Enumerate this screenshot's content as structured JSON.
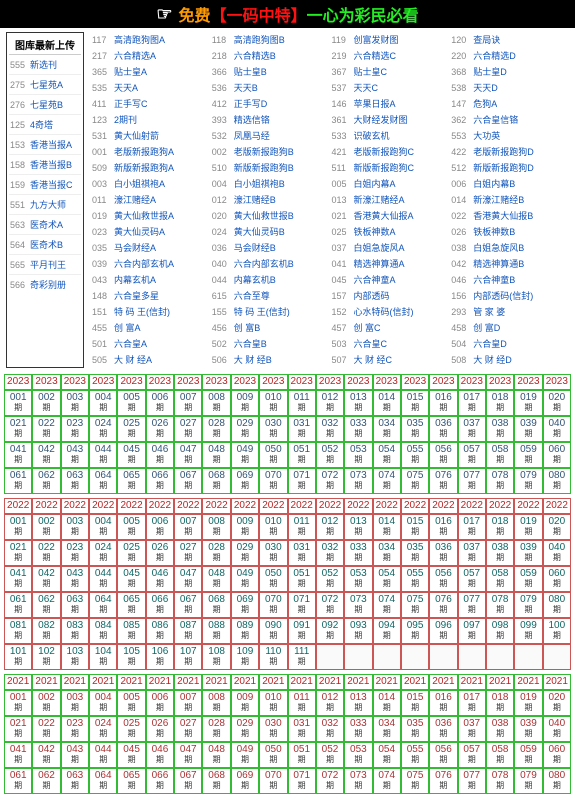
{
  "banner": {
    "hand": "☞",
    "p1": "免费",
    "p2": "【一码中特】",
    "p3": "一心为彩民必看"
  },
  "sidebar": {
    "title": "图库最新上传",
    "items": [
      {
        "n": "555",
        "t": "新选刊"
      },
      {
        "n": "275",
        "t": "七星苑A"
      },
      {
        "n": "276",
        "t": "七星苑B"
      },
      {
        "n": "125",
        "t": "4奇塔"
      },
      {
        "n": "153",
        "t": "香港当报A"
      },
      {
        "n": "158",
        "t": "香港当报B"
      },
      {
        "n": "159",
        "t": "香港当报C"
      },
      {
        "n": "551",
        "t": "九方大师"
      },
      {
        "n": "563",
        "t": "医奇术A"
      },
      {
        "n": "564",
        "t": "医奇术B"
      },
      {
        "n": "565",
        "t": "平月刊王"
      },
      {
        "n": "566",
        "t": "奇彩别册"
      }
    ]
  },
  "links": [
    [
      {
        "n": "117",
        "t": "高清跑狗图A"
      },
      {
        "n": "118",
        "t": "高清跑狗图B"
      },
      {
        "n": "119",
        "t": "创富发财图"
      },
      {
        "n": "120",
        "t": "查局诀"
      }
    ],
    [
      {
        "n": "217",
        "t": "六合精选A"
      },
      {
        "n": "218",
        "t": "六合精选B"
      },
      {
        "n": "219",
        "t": "六合精选C"
      },
      {
        "n": "220",
        "t": "六合精选D"
      }
    ],
    [
      {
        "n": "365",
        "t": "贴士皇A"
      },
      {
        "n": "366",
        "t": "贴士皇B"
      },
      {
        "n": "367",
        "t": "贴士皇C"
      },
      {
        "n": "368",
        "t": "贴士皇D"
      }
    ],
    [
      {
        "n": "535",
        "t": "天天A"
      },
      {
        "n": "536",
        "t": "天天B"
      },
      {
        "n": "537",
        "t": "天天C"
      },
      {
        "n": "538",
        "t": "天天D"
      }
    ],
    [
      {
        "n": "411",
        "t": "正手写C"
      },
      {
        "n": "412",
        "t": "正手写D"
      },
      {
        "n": "146",
        "t": "苹果日报A"
      },
      {
        "n": "147",
        "t": "危狗A"
      }
    ],
    [
      {
        "n": "123",
        "t": "2期刊"
      },
      {
        "n": "393",
        "t": "精选信铬"
      },
      {
        "n": "361",
        "t": "大财经发财图"
      },
      {
        "n": "362",
        "t": "六合皇信铬"
      }
    ],
    [
      {
        "n": "531",
        "t": "黄大仙射箭"
      },
      {
        "n": "532",
        "t": "凤凰马经"
      },
      {
        "n": "533",
        "t": "识破玄机"
      },
      {
        "n": "553",
        "t": "大功英"
      }
    ],
    [
      {
        "n": "001",
        "t": "老版新报跑狗A"
      },
      {
        "n": "002",
        "t": "老版新报跑狗B"
      },
      {
        "n": "421",
        "t": "老版新报跑狗C"
      },
      {
        "n": "422",
        "t": "老版新报跑狗D"
      }
    ],
    [
      {
        "n": "509",
        "t": "新版新报跑狗A"
      },
      {
        "n": "510",
        "t": "新版新报跑狗B"
      },
      {
        "n": "511",
        "t": "新版新报跑狗C"
      },
      {
        "n": "512",
        "t": "新版新报跑狗D"
      }
    ],
    [
      {
        "n": "003",
        "t": "白小姐祺袍A"
      },
      {
        "n": "004",
        "t": "白小姐祺袍B"
      },
      {
        "n": "005",
        "t": "白姐内幕A"
      },
      {
        "n": "006",
        "t": "白姐内幕B"
      }
    ],
    [
      {
        "n": "011",
        "t": "濠江赌经A"
      },
      {
        "n": "012",
        "t": "濠江赌经B"
      },
      {
        "n": "013",
        "t": "新濠江赌经A"
      },
      {
        "n": "014",
        "t": "新濠江赌经B"
      }
    ],
    [
      {
        "n": "019",
        "t": "黄大仙救世报A"
      },
      {
        "n": "020",
        "t": "黄大仙救世报B"
      },
      {
        "n": "021",
        "t": "香港黄大仙报A"
      },
      {
        "n": "022",
        "t": "香港黄大仙报B"
      }
    ],
    [
      {
        "n": "023",
        "t": "黄大仙灵码A"
      },
      {
        "n": "024",
        "t": "黄大仙灵码B"
      },
      {
        "n": "025",
        "t": "铁板神数A"
      },
      {
        "n": "026",
        "t": "铁板神数B"
      }
    ],
    [
      {
        "n": "035",
        "t": "马会财经A"
      },
      {
        "n": "036",
        "t": "马会财经B"
      },
      {
        "n": "037",
        "t": "白姐急旋风A"
      },
      {
        "n": "038",
        "t": "白姐急旋风B"
      }
    ],
    [
      {
        "n": "039",
        "t": "六合内部玄机A"
      },
      {
        "n": "040",
        "t": "六合内部玄机B"
      },
      {
        "n": "041",
        "t": "精选神算通A"
      },
      {
        "n": "042",
        "t": "精选神算通B"
      }
    ],
    [
      {
        "n": "043",
        "t": "内幕玄机A"
      },
      {
        "n": "044",
        "t": "内幕玄机B"
      },
      {
        "n": "045",
        "t": "六合神童A"
      },
      {
        "n": "046",
        "t": "六合神童B"
      }
    ],
    [
      {
        "n": "148",
        "t": "六合皇多星"
      },
      {
        "n": "615",
        "t": "六合至尊"
      },
      {
        "n": "157",
        "t": "内部透码"
      },
      {
        "n": "156",
        "t": "内部透码(信封)"
      }
    ],
    [
      {
        "n": "151",
        "t": "特 码 王(信封)"
      },
      {
        "n": "155",
        "t": "特 码 王(信封)"
      },
      {
        "n": "152",
        "t": "心水特码(信封)"
      },
      {
        "n": "293",
        "t": "管 家 婆"
      }
    ],
    [
      {
        "n": "455",
        "t": "创 富A"
      },
      {
        "n": "456",
        "t": "创 富B"
      },
      {
        "n": "457",
        "t": "创 富C"
      },
      {
        "n": "458",
        "t": "创 富D"
      }
    ],
    [
      {
        "n": "501",
        "t": "六合皇A"
      },
      {
        "n": "502",
        "t": "六合皇B"
      },
      {
        "n": "503",
        "t": "六合皇C"
      },
      {
        "n": "504",
        "t": "六合皇D"
      }
    ],
    [
      {
        "n": "505",
        "t": "大 财 经A"
      },
      {
        "n": "506",
        "t": "大 财 经B"
      },
      {
        "n": "507",
        "t": "大 财 经C"
      },
      {
        "n": "508",
        "t": "大 财 经D"
      }
    ]
  ],
  "calendars": [
    {
      "year": "2023",
      "cols": 20,
      "count": 80,
      "partial": 0,
      "cls": "c2023"
    },
    {
      "year": "2022",
      "cols": 20,
      "count": 111,
      "partial": 9,
      "cls": "c2022"
    },
    {
      "year": "2021",
      "cols": 20,
      "count": 80,
      "partial": 0,
      "cls": "c2021"
    }
  ],
  "period_label": "期"
}
